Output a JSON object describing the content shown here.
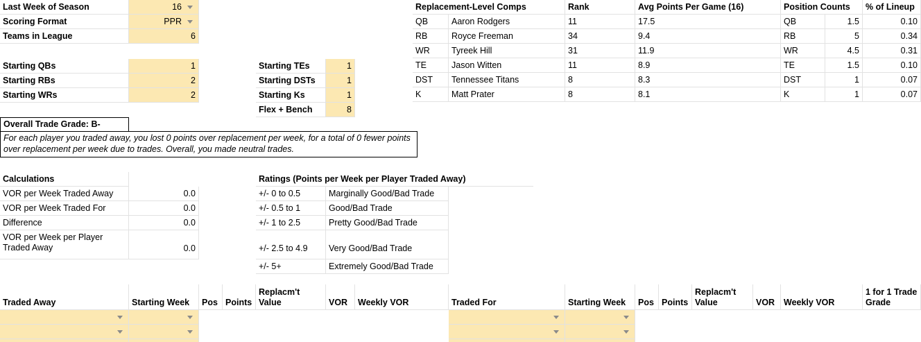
{
  "settings": {
    "last_week_label": "Last Week of Season",
    "last_week_value": "16",
    "scoring_label": "Scoring Format",
    "scoring_value": "PPR",
    "teams_label": "Teams in League",
    "teams_value": "6",
    "qb_label": "Starting QBs",
    "qb_value": "1",
    "rb_label": "Starting RBs",
    "rb_value": "2",
    "wr_label": "Starting WRs",
    "wr_value": "2",
    "te_label": "Starting TEs",
    "te_value": "1",
    "dst_label": "Starting DSTs",
    "dst_value": "1",
    "k_label": "Starting Ks",
    "k_value": "1",
    "flex_label": "Flex + Bench",
    "flex_value": "8"
  },
  "replacement": {
    "header_comps": "Replacement-Level Comps",
    "header_rank": "Rank",
    "header_avg": "Avg Points Per Game (16)",
    "rows": [
      {
        "pos": "QB",
        "player": "Aaron Rodgers",
        "rank": "11",
        "avg": "17.5"
      },
      {
        "pos": "RB",
        "player": "Royce Freeman",
        "rank": "34",
        "avg": "9.4"
      },
      {
        "pos": "WR",
        "player": "Tyreek Hill",
        "rank": "31",
        "avg": "11.9"
      },
      {
        "pos": "TE",
        "player": "Jason Witten",
        "rank": "11",
        "avg": "8.9"
      },
      {
        "pos": "DST",
        "player": "Tennessee Titans",
        "rank": "8",
        "avg": "8.3"
      },
      {
        "pos": "K",
        "player": "Matt Prater",
        "rank": "8",
        "avg": "8.1"
      }
    ]
  },
  "positions": {
    "header_counts": "Position Counts",
    "header_pct": "% of Lineup",
    "rows": [
      {
        "pos": "QB",
        "count": "1.5",
        "pct": "0.10"
      },
      {
        "pos": "RB",
        "count": "5",
        "pct": "0.34"
      },
      {
        "pos": "WR",
        "count": "4.5",
        "pct": "0.31"
      },
      {
        "pos": "TE",
        "count": "1.5",
        "pct": "0.10"
      },
      {
        "pos": "DST",
        "count": "1",
        "pct": "0.07"
      },
      {
        "pos": "K",
        "count": "1",
        "pct": "0.07"
      }
    ]
  },
  "grade": {
    "overall": "Overall Trade Grade: B-",
    "note": "For each player you traded away, you lost 0 points over replacement per week, for a total of 0 fewer points over replacement per week due to trades. Overall, you made neutral trades."
  },
  "calculations": {
    "header": "Calculations",
    "rows": [
      {
        "label": "VOR per Week Traded Away",
        "value": "0.0"
      },
      {
        "label": "VOR per Week Traded For",
        "value": "0.0"
      },
      {
        "label": "Difference",
        "value": "0.0"
      },
      {
        "label": "VOR per Week per Player Traded Away",
        "value": "0.0"
      }
    ]
  },
  "ratings": {
    "header": "Ratings (Points per Week per Player Traded Away)",
    "rows": [
      {
        "range": "+/- 0 to 0.5",
        "desc": "Marginally Good/Bad Trade"
      },
      {
        "range": "+/- 0.5 to 1",
        "desc": "Good/Bad Trade"
      },
      {
        "range": "+/- 1 to 2.5",
        "desc": "Pretty Good/Bad Trade"
      },
      {
        "range": "+/- 2.5 to 4.9",
        "desc": "Very Good/Bad Trade"
      },
      {
        "range": "+/- 5+",
        "desc": "Extremely Good/Bad Trade"
      }
    ]
  },
  "trades": {
    "traded_away": "Traded Away",
    "starting_week": "Starting Week",
    "pos": "Pos",
    "points": "Points",
    "replacement_value": "Replacm't Value",
    "vor": "VOR",
    "weekly_vor": "Weekly VOR",
    "traded_for": "Traded For",
    "starting_week_2": "Starting Week",
    "pos_2": "Pos",
    "points_2": "Points",
    "replacement_value_2": "Replacm't Value",
    "vor_2": "VOR",
    "weekly_vor_2": "Weekly VOR",
    "grade_1for1": "1 for 1 Trade Grade"
  }
}
